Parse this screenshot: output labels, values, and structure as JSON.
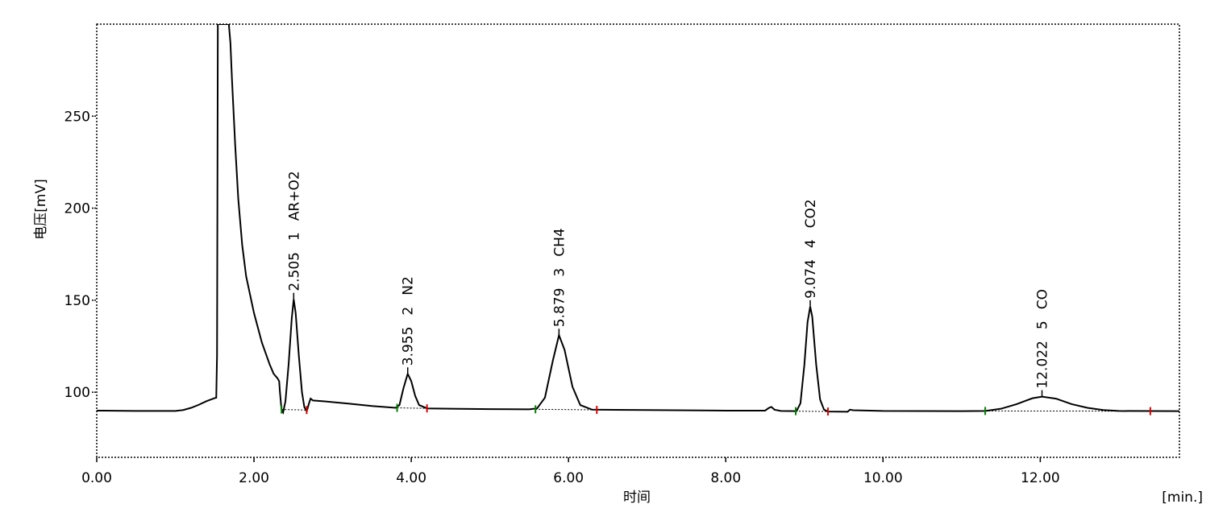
{
  "chart_data": {
    "type": "line",
    "ylabel": "电压[mV]",
    "xlabel": "时间",
    "xunit": "[min.]",
    "xlim": [
      0,
      13.77
    ],
    "ylim": [
      64.6,
      300
    ],
    "xticks": [
      {
        "value": 0,
        "label": "0.00"
      },
      {
        "value": 2,
        "label": "2.00"
      },
      {
        "value": 4,
        "label": "4.00"
      },
      {
        "value": 6,
        "label": "6.00"
      },
      {
        "value": 8,
        "label": "8.00"
      },
      {
        "value": 10,
        "label": "10.00"
      },
      {
        "value": 12,
        "label": "12.00"
      }
    ],
    "yticks": [
      100,
      150,
      200,
      250
    ],
    "x": [
      0,
      0.5,
      1.0,
      1.1,
      1.2,
      1.3,
      1.4,
      1.5,
      1.52,
      1.53,
      1.54,
      1.68,
      1.7,
      1.72,
      1.76,
      1.8,
      1.85,
      1.9,
      2.0,
      2.1,
      2.2,
      2.25,
      2.3,
      2.32,
      2.33,
      2.35,
      2.37,
      2.4,
      2.44,
      2.48,
      2.505,
      2.53,
      2.57,
      2.61,
      2.64,
      2.67,
      2.7,
      2.72,
      2.75,
      2.9,
      3.2,
      3.5,
      3.8,
      3.85,
      3.9,
      3.955,
      4.0,
      4.05,
      4.1,
      4.2,
      4.5,
      5.0,
      5.5,
      5.6,
      5.7,
      5.8,
      5.879,
      5.95,
      6.05,
      6.15,
      6.3,
      7.0,
      8.0,
      8.5,
      8.55,
      8.58,
      8.62,
      8.7,
      8.9,
      8.95,
      9.0,
      9.04,
      9.074,
      9.1,
      9.15,
      9.2,
      9.25,
      9.3,
      9.55,
      9.58,
      9.62,
      10.0,
      11.0,
      11.3,
      11.5,
      11.7,
      11.9,
      12.022,
      12.2,
      12.4,
      12.6,
      12.8,
      13.0,
      13.77
    ],
    "series": [
      {
        "color": "#000000",
        "values": [
          90,
          89.8,
          89.8,
          90.3,
          91.5,
          93.2,
          95.2,
          96.8,
          97,
          120,
          300,
          300,
          290,
          270,
          235,
          205,
          180,
          163,
          143,
          127,
          115,
          110,
          107.5,
          106,
          100,
          90.5,
          89,
          95,
          115,
          140,
          150.5,
          143,
          120,
          100,
          92,
          89.5,
          94,
          96.5,
          95.5,
          95,
          93.8,
          92.5,
          91.5,
          93,
          102,
          110,
          106,
          98,
          93,
          91.2,
          91,
          90.8,
          90.7,
          91.2,
          97,
          117,
          131,
          123,
          103,
          93,
          90.5,
          90.3,
          90,
          90,
          91.5,
          92,
          90.5,
          89.8,
          89.7,
          94,
          115,
          138,
          146.5,
          141,
          115,
          96,
          90.5,
          89.5,
          89.4,
          90.5,
          90.2,
          89.8,
          89.7,
          89.8,
          91,
          93.5,
          96.7,
          97.6,
          96.5,
          93.5,
          91.5,
          90.3,
          89.8,
          89.7
        ]
      }
    ],
    "peaks": [
      {
        "time": 2.505,
        "number": 1,
        "name": "AR+O2",
        "start": {
          "x": 2.35,
          "y": 90.6
        },
        "end": {
          "x": 2.67,
          "y": 90.3
        }
      },
      {
        "time": 3.955,
        "number": 2,
        "name": "N2",
        "start": {
          "x": 3.82,
          "y": 91.5
        },
        "end": {
          "x": 4.2,
          "y": 91.2
        }
      },
      {
        "time": 5.879,
        "number": 3,
        "name": "CH4",
        "start": {
          "x": 5.58,
          "y": 90.7
        },
        "end": {
          "x": 6.36,
          "y": 90.4
        }
      },
      {
        "time": 9.074,
        "number": 4,
        "name": "CO2",
        "start": {
          "x": 8.89,
          "y": 89.7
        },
        "end": {
          "x": 9.3,
          "y": 89.5
        }
      },
      {
        "time": 12.022,
        "number": 5,
        "name": "CO",
        "start": {
          "x": 11.3,
          "y": 89.8
        },
        "end": {
          "x": 13.4,
          "y": 89.7
        }
      }
    ]
  }
}
